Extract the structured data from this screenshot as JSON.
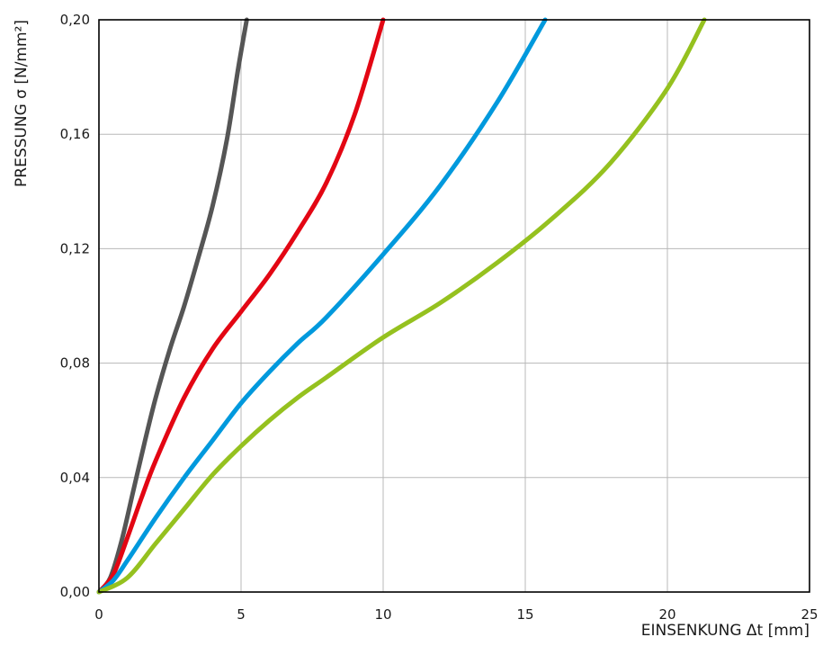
{
  "chart_data": {
    "type": "line",
    "title": "",
    "xlabel": "EINSENKUNG Δt [mm]",
    "ylabel": "PRESSUNG σ [N/mm²]",
    "xlim": [
      0,
      25
    ],
    "ylim": [
      0,
      0.2
    ],
    "xticks": [
      0,
      5,
      10,
      15,
      20,
      25
    ],
    "xtick_labels": [
      "0",
      "5",
      "10",
      "15",
      "20",
      "25"
    ],
    "yticks": [
      0,
      0.04,
      0.08,
      0.12,
      0.16,
      0.2
    ],
    "ytick_labels": [
      "0,00",
      "0,04",
      "0,08",
      "0,12",
      "0,16",
      "0,20"
    ],
    "grid": true,
    "legend": "none",
    "series": [
      {
        "color": "#555555",
        "x": [
          0,
          0.4,
          0.8,
          1.2,
          1.6,
          2.0,
          2.5,
          3.0,
          3.5,
          4.0,
          4.5,
          4.9,
          5.2
        ],
        "y": [
          0,
          0.005,
          0.018,
          0.035,
          0.052,
          0.068,
          0.085,
          0.1,
          0.117,
          0.135,
          0.158,
          0.183,
          0.2
        ]
      },
      {
        "color": "#e30613",
        "x": [
          0,
          0.5,
          1.0,
          1.5,
          2.0,
          3.0,
          4.0,
          5.0,
          6.0,
          7.0,
          8.0,
          9.0,
          10.0
        ],
        "y": [
          0,
          0.006,
          0.019,
          0.033,
          0.046,
          0.068,
          0.085,
          0.098,
          0.111,
          0.126,
          0.143,
          0.167,
          0.2
        ]
      },
      {
        "color": "#0099dd",
        "x": [
          0,
          0.5,
          1.0,
          2.0,
          3.0,
          4.0,
          5.0,
          6.0,
          7.0,
          8.0,
          10.0,
          12.0,
          14.0,
          15.7
        ],
        "y": [
          0,
          0.004,
          0.011,
          0.026,
          0.04,
          0.053,
          0.066,
          0.077,
          0.087,
          0.096,
          0.118,
          0.142,
          0.171,
          0.2
        ]
      },
      {
        "color": "#95c11f",
        "x": [
          0,
          1.0,
          2.0,
          3.0,
          4.0,
          5.0,
          6.0,
          7.0,
          8.0,
          10.0,
          12.0,
          14.0,
          16.0,
          18.0,
          20.0,
          21.3
        ],
        "y": [
          0,
          0.005,
          0.017,
          0.029,
          0.041,
          0.051,
          0.06,
          0.068,
          0.075,
          0.089,
          0.101,
          0.115,
          0.131,
          0.15,
          0.176,
          0.2
        ]
      }
    ]
  }
}
